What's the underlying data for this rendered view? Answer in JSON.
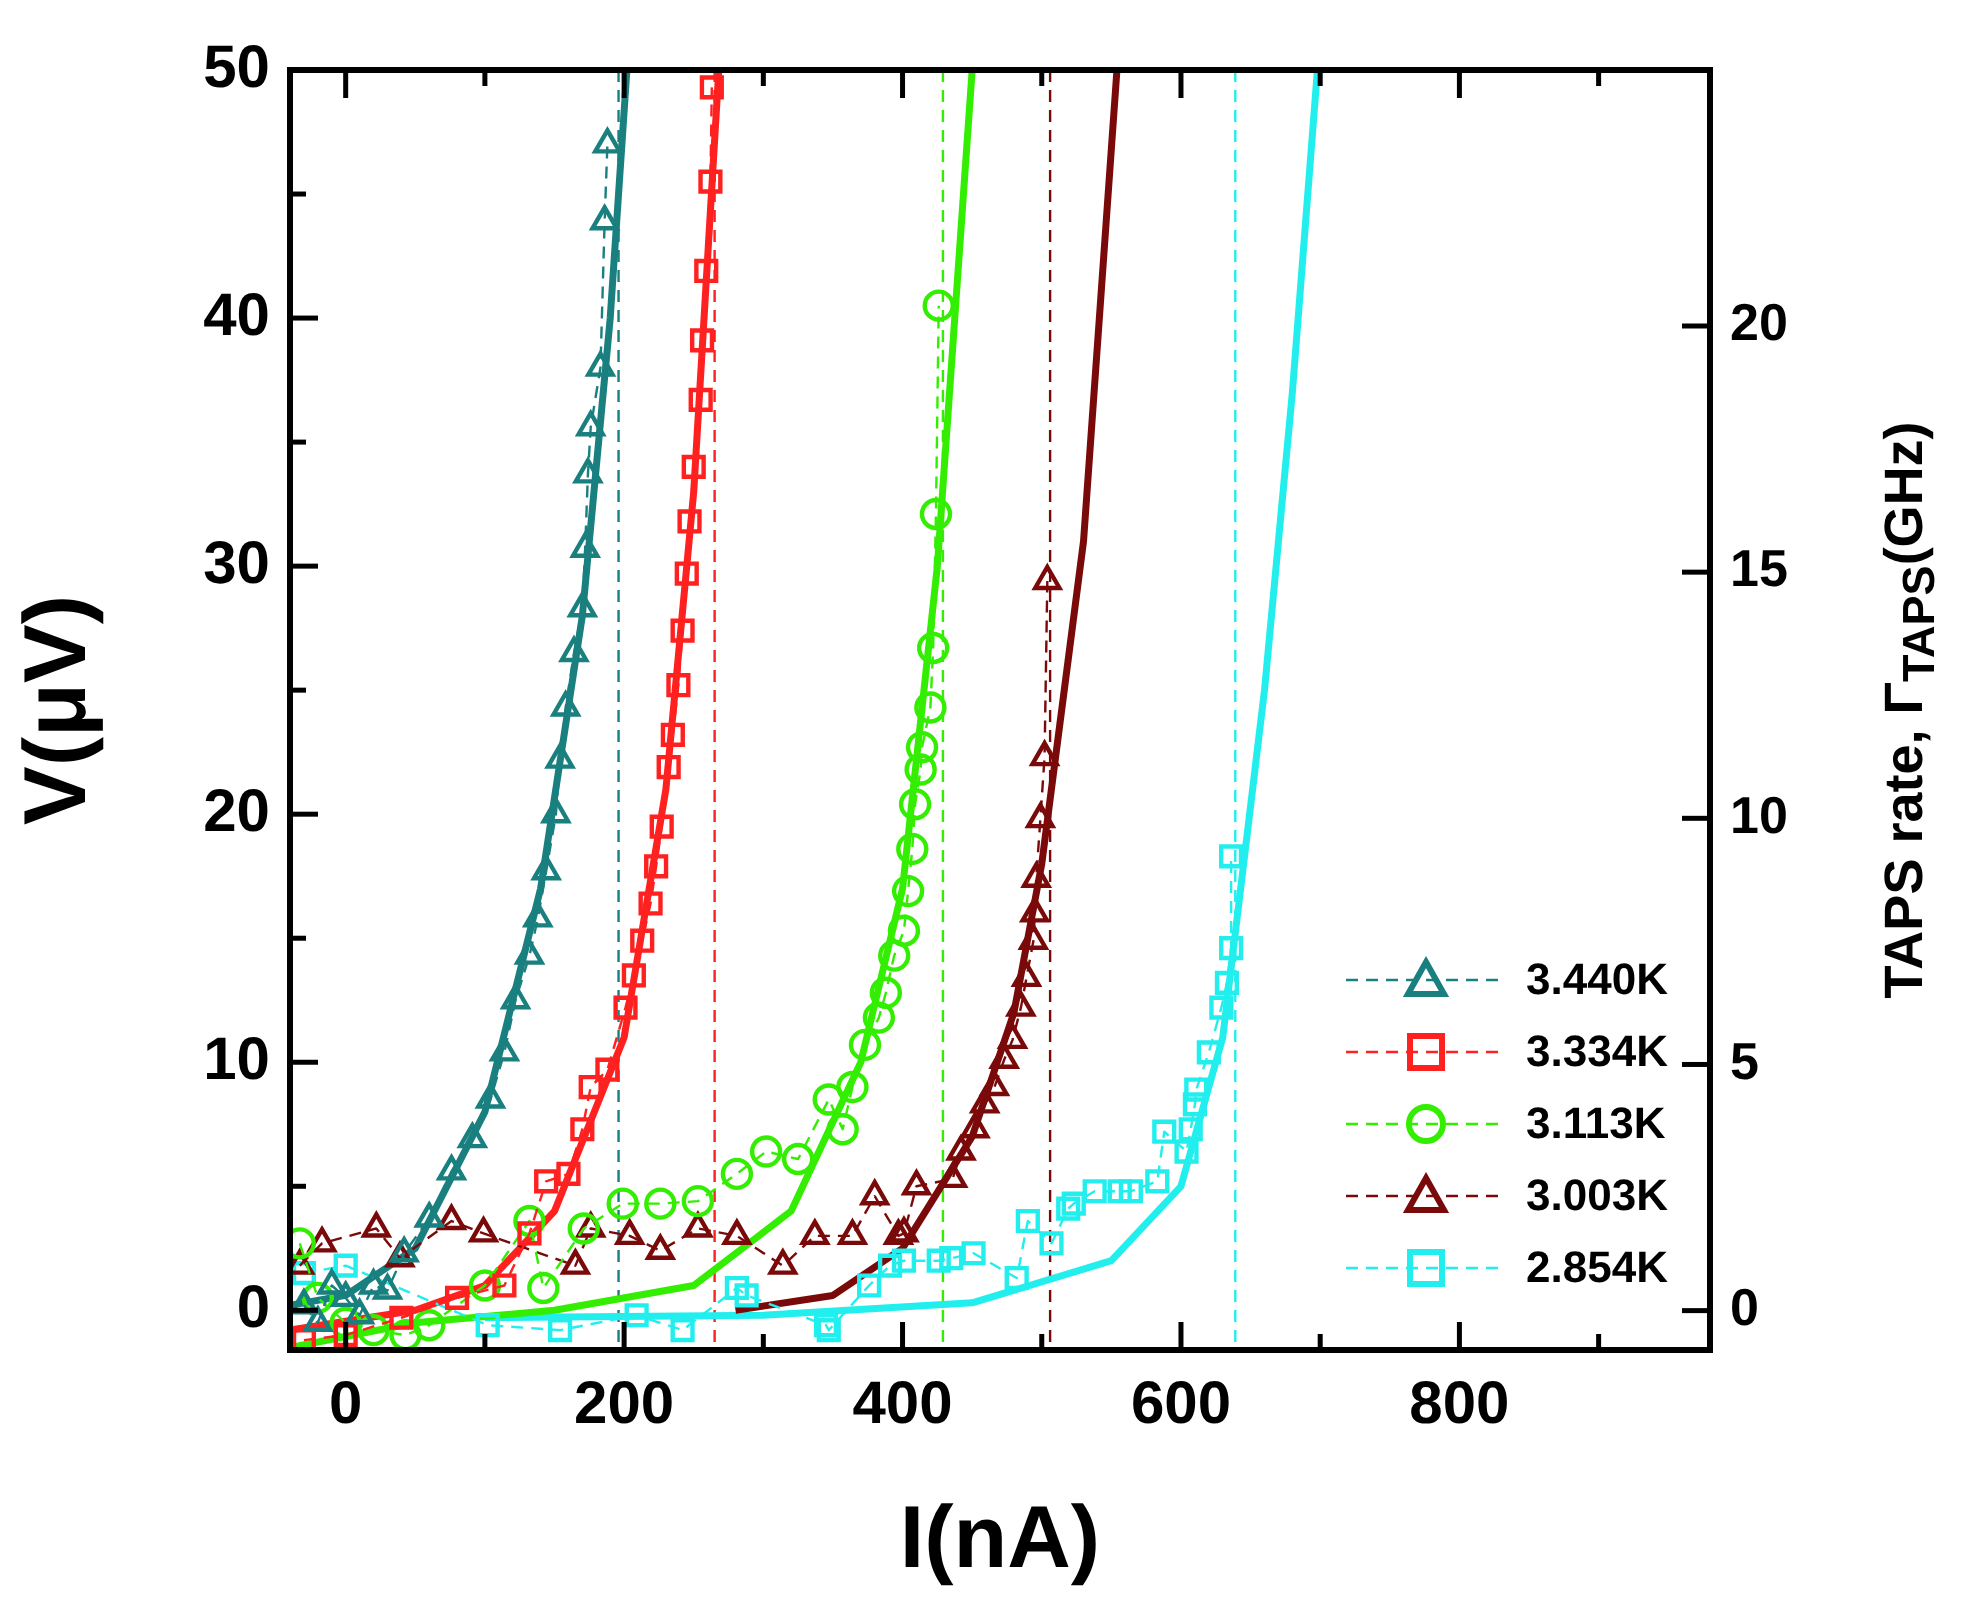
{
  "chart_data": {
    "type": "line",
    "xlabel": "I(nA)",
    "ylabel": "V(μV)",
    "y2label": "TAPS rate, Γ$_{TAPS}$(GHz)",
    "xlim": [
      -40,
      980
    ],
    "xticks": [
      0,
      {
        "value": 100,
        "label": null
      },
      200,
      {
        "value": 300,
        "label": null
      },
      400,
      {
        "value": 500,
        "label": null
      },
      600,
      {
        "value": 700,
        "label": null
      },
      800,
      {
        "value": 900,
        "label": null
      }
    ],
    "ylim": [
      -1.6,
      50
    ],
    "yticks": [
      0,
      {
        "value": 5,
        "label": null
      },
      10,
      {
        "value": 15,
        "label": null
      },
      20,
      {
        "value": 25,
        "label": null
      },
      30,
      {
        "value": 35,
        "label": null
      },
      40,
      {
        "value": 45,
        "label": null
      },
      50
    ],
    "y2lim": [
      -0.8,
      25.2
    ],
    "y2ticks": [
      0,
      5,
      10,
      15,
      20
    ],
    "grid": false,
    "legend": "bottom right",
    "ref_lines": [
      {
        "axis": "x",
        "value": 196,
        "color": "#1a7f7f",
        "line_style": "dashed"
      },
      {
        "axis": "x",
        "value": 265,
        "color": "#ff2020",
        "line_style": "dashed"
      },
      {
        "axis": "x",
        "value": 429,
        "color": "#33ee00",
        "line_style": "dashed"
      },
      {
        "axis": "x",
        "value": 506,
        "color": "#7a0a0a",
        "line_style": "dashed"
      },
      {
        "axis": "x",
        "value": 639,
        "color": "#22eeee",
        "line_style": "dashed"
      }
    ],
    "series": [
      {
        "name": "3.440K",
        "color": "#1a7f7f",
        "marker": "triangle",
        "line_style": "dashed",
        "x": [
          -30,
          -20,
          -10,
          0,
          10,
          20,
          30,
          42,
          60,
          76,
          91,
          104,
          114,
          122,
          132,
          138,
          144,
          151,
          154,
          158,
          164,
          170,
          172,
          174,
          176,
          183,
          186,
          188
        ],
        "values": [
          0.2,
          -0.5,
          1,
          0.5,
          -0.2,
          1,
          0.8,
          2.3,
          3.7,
          5.6,
          6.9,
          8.5,
          10.4,
          12.5,
          14.3,
          15.8,
          17.7,
          20,
          22.2,
          24.3,
          26.5,
          28.3,
          30.7,
          33.7,
          35.6,
          38,
          43.9,
          47
        ]
      },
      {
        "name": "3.334K",
        "color": "#ff2020",
        "marker": "square",
        "line_style": "dashed",
        "x": [
          -30,
          0,
          40,
          80,
          114,
          132,
          144,
          160,
          170,
          176,
          188,
          201,
          207,
          213,
          219,
          223,
          227,
          232,
          235,
          239,
          242,
          245,
          247,
          250,
          255,
          256,
          259,
          262,
          263
        ],
        "values": [
          -1.2,
          -1,
          -0.3,
          0.5,
          1,
          3.1,
          5.2,
          5.5,
          7.3,
          9,
          9.7,
          12.2,
          13.5,
          14.9,
          16.4,
          17.9,
          19.5,
          21.9,
          23.2,
          25.2,
          27.4,
          29.7,
          31.8,
          34,
          36.7,
          39.1,
          41.9,
          45.5,
          49.3
        ]
      },
      {
        "name": "3.113K",
        "color": "#33ee00",
        "marker": "circle",
        "line_style": "dashed",
        "x": [
          -33,
          -20,
          0,
          20,
          43,
          60,
          100,
          132,
          142,
          171,
          199,
          226,
          253,
          281,
          302,
          325,
          347,
          357,
          364,
          373,
          383,
          388,
          394,
          401,
          404,
          407,
          409,
          413,
          414,
          420,
          422,
          424,
          426
        ],
        "values": [
          2.7,
          0.5,
          -0.5,
          -0.8,
          -1,
          -0.6,
          1,
          3.6,
          0.9,
          3.3,
          4.3,
          4.3,
          4.4,
          5.5,
          6.4,
          6.1,
          8.5,
          7.3,
          9,
          10.7,
          11.8,
          12.8,
          14.3,
          15.3,
          16.9,
          18.6,
          20.4,
          21.8,
          22.7,
          24.3,
          26.7,
          32.1,
          40.5
        ]
      },
      {
        "name": "3.003K",
        "color": "#7a0a0a",
        "marker": "triangle",
        "line_style": "dashed",
        "x": [
          -33,
          -17,
          22,
          39,
          76,
          99,
          165,
          176,
          204,
          226,
          253,
          281,
          314,
          337,
          364,
          380,
          397,
          401,
          410,
          436,
          442,
          452,
          459,
          466,
          473,
          479,
          485,
          489,
          494,
          495,
          496,
          499,
          502,
          504
        ],
        "values": [
          1.8,
          2.7,
          3.3,
          2.1,
          3.6,
          3.1,
          1.8,
          3.3,
          3,
          2.4,
          3.3,
          3,
          1.8,
          3,
          3,
          4.6,
          3,
          3.1,
          5,
          5.3,
          6.4,
          7.3,
          8.3,
          9,
          10.1,
          10.9,
          12.2,
          13.4,
          14.9,
          16,
          17.4,
          19.8,
          22.3,
          29.4
        ]
      },
      {
        "name": "2.854K",
        "color": "#22eeee",
        "marker": "square",
        "line_style": "dashed",
        "x": [
          -30,
          0,
          102,
          154,
          209,
          242,
          281,
          288,
          345,
          347,
          376,
          391,
          401,
          426,
          435,
          451,
          482,
          490,
          507,
          519,
          523,
          538,
          556,
          564,
          583,
          588,
          604,
          607,
          610,
          611,
          620,
          629,
          633,
          636,
          636
        ],
        "values": [
          1.5,
          1.8,
          -0.6,
          -0.8,
          -0.2,
          -0.8,
          0.9,
          0.6,
          -0.6,
          -0.8,
          1,
          1.8,
          2,
          2,
          2.1,
          2.3,
          1.3,
          3.6,
          2.7,
          4.1,
          4.3,
          4.8,
          4.8,
          4.8,
          5.2,
          7.2,
          6.4,
          7.3,
          8.3,
          8.9,
          10.4,
          12.2,
          13.2,
          14.6,
          18.3
        ]
      },
      {
        "color": "#1a7f7f",
        "marker": "none",
        "line_style": "solid",
        "x": [
          -40,
          0,
          50,
          100,
          140,
          170,
          190,
          202
        ],
        "values": [
          0.2,
          0.6,
          2.5,
          8,
          17,
          28,
          40,
          50
        ]
      },
      {
        "color": "#ff2020",
        "marker": "none",
        "line_style": "solid",
        "x": [
          -40,
          50,
          100,
          150,
          200,
          230,
          250,
          268
        ],
        "values": [
          -0.8,
          0,
          1,
          4,
          11,
          21,
          33,
          50
        ]
      },
      {
        "color": "#33ee00",
        "marker": "none",
        "line_style": "solid",
        "x": [
          -40,
          50,
          150,
          250,
          320,
          370,
          400,
          425,
          450
        ],
        "values": [
          -1.5,
          -0.5,
          0,
          1,
          4,
          10,
          17,
          30,
          50
        ]
      },
      {
        "color": "#7a0a0a",
        "marker": "none",
        "line_style": "solid",
        "x": [
          280,
          350,
          400,
          450,
          480,
          500,
          530,
          554
        ],
        "values": [
          0,
          0.6,
          2.5,
          7,
          12,
          18,
          31,
          50
        ]
      },
      {
        "color": "#22eeee",
        "marker": "none",
        "line_style": "solid",
        "x": [
          100,
          300,
          450,
          550,
          600,
          630,
          660,
          680,
          698
        ],
        "values": [
          -0.3,
          -0.2,
          0.3,
          2,
          5,
          11,
          25,
          37,
          50
        ]
      }
    ]
  }
}
